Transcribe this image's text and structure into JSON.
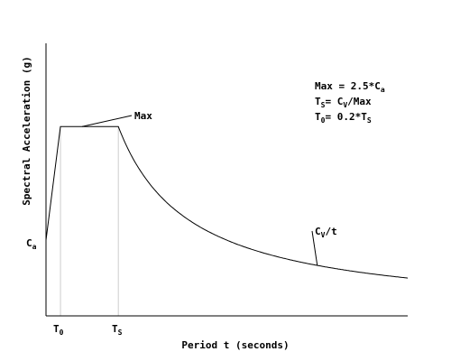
{
  "chart_data": {
    "type": "line",
    "title": "",
    "xlabel": "Period t (seconds)",
    "ylabel": "Spectral Acceleration (g)",
    "grid": false,
    "axis_ticks": false,
    "x_markers": [
      {
        "main": "T",
        "sub": "0",
        "x": 0.2
      },
      {
        "main": "T",
        "sub": "S",
        "x": 1.0
      }
    ],
    "y_markers": [
      {
        "main": "C",
        "sub": "a",
        "y": 1.0
      }
    ],
    "series": [
      {
        "curve": "design-response-spectrum",
        "points": [
          [
            0,
            1.0
          ],
          [
            0.2,
            2.5
          ],
          [
            1.0,
            2.5
          ],
          [
            1.2,
            2.0833
          ],
          [
            1.5,
            1.6667
          ],
          [
            2.0,
            1.25
          ],
          [
            2.5,
            1.0
          ],
          [
            3.0,
            0.8333
          ],
          [
            3.5,
            0.7143
          ],
          [
            4.0,
            0.625
          ],
          [
            5.0,
            0.5
          ]
        ],
        "plateau": {
          "x_start": 0.2,
          "x_end": 1.0,
          "y": 2.5
        },
        "decay_numerator": 2.5
      }
    ],
    "annotations": [
      {
        "name": "max",
        "text": "Max",
        "points_to": [
          0.5,
          2.5
        ]
      },
      {
        "name": "cv-over-t",
        "main": "C",
        "sub": "V",
        "rest": "/t",
        "points_to": [
          3.75,
          0.6667
        ]
      }
    ],
    "formulas": [
      {
        "name": "max",
        "parts": [
          {
            "t": "Max = 2.5*C"
          },
          {
            "t": "a",
            "sub": true
          }
        ]
      },
      {
        "name": "ts",
        "parts": [
          {
            "t": "T"
          },
          {
            "t": "S",
            "sub": true
          },
          {
            "t": "= C"
          },
          {
            "t": "V",
            "sub": true
          },
          {
            "t": "/Max"
          }
        ]
      },
      {
        "name": "t0",
        "parts": [
          {
            "t": "T"
          },
          {
            "t": "0",
            "sub": true
          },
          {
            "t": "= 0.2*T"
          },
          {
            "t": "S",
            "sub": true
          }
        ]
      }
    ],
    "xlim": [
      0,
      5.0
    ],
    "ylim": [
      0,
      3.6
    ],
    "colors": {
      "curve": "#000000",
      "marker_lines": "#cccccc",
      "axes": "#000000",
      "background": "#ffffff"
    }
  }
}
